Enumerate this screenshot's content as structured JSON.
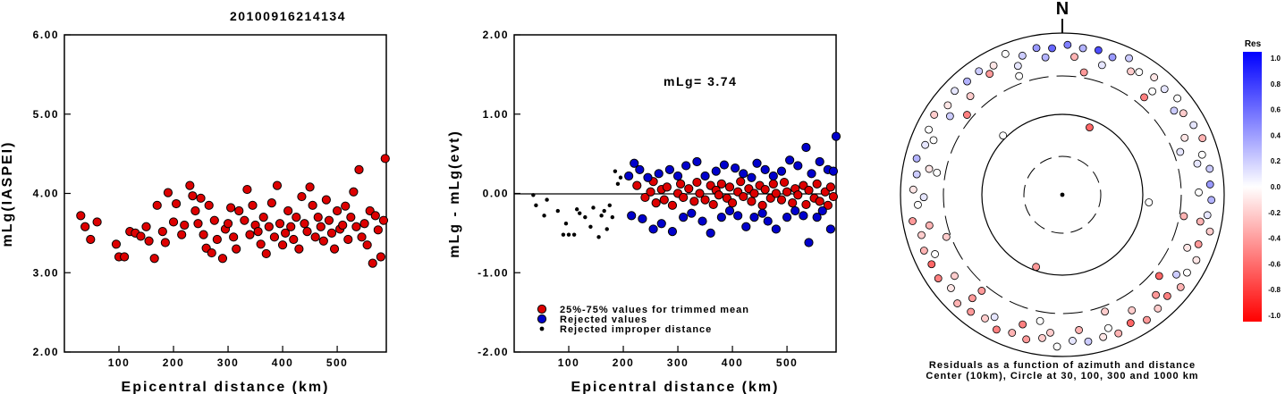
{
  "title": "20100916214134",
  "chart_data": [
    {
      "type": "scatter",
      "name": "magnitude-vs-distance",
      "xlabel": "Epicentral distance (km)",
      "ylabel": "mLg(IASPEI)",
      "xlim": [
        0,
        590
      ],
      "ylim": [
        2.0,
        6.0
      ],
      "xticks": [
        "100",
        "200",
        "300",
        "400",
        "500"
      ],
      "yticks": [
        "2.00",
        "3.00",
        "4.00",
        "5.00",
        "6.00"
      ],
      "series": [
        {
          "marker": "red-circle",
          "x": [
            30,
            38,
            48,
            60,
            95,
            100,
            110,
            120,
            130,
            140,
            150,
            155,
            165,
            170,
            180,
            185,
            190,
            200,
            205,
            215,
            220,
            230,
            235,
            240,
            245,
            250,
            255,
            260,
            265,
            270,
            275,
            280,
            290,
            295,
            300,
            305,
            310,
            315,
            320,
            330,
            335,
            340,
            345,
            350,
            355,
            360,
            365,
            370,
            375,
            380,
            385,
            390,
            395,
            400,
            405,
            410,
            415,
            420,
            425,
            430,
            435,
            440,
            445,
            450,
            455,
            460,
            465,
            470,
            475,
            480,
            485,
            490,
            495,
            500,
            505,
            510,
            515,
            520,
            525,
            530,
            535,
            540,
            545,
            550,
            555,
            560,
            565,
            570,
            575,
            580,
            585,
            588
          ],
          "y": [
            3.72,
            3.58,
            3.42,
            3.64,
            3.36,
            3.2,
            3.2,
            3.52,
            3.5,
            3.46,
            3.58,
            3.4,
            3.18,
            3.85,
            3.52,
            3.38,
            4.01,
            3.64,
            3.87,
            3.48,
            3.6,
            4.1,
            3.97,
            3.78,
            3.62,
            3.94,
            3.48,
            3.31,
            3.85,
            3.25,
            3.66,
            3.42,
            3.18,
            3.55,
            3.62,
            3.82,
            3.45,
            3.3,
            3.78,
            3.66,
            4.05,
            3.48,
            3.85,
            3.6,
            3.52,
            3.36,
            3.7,
            3.24,
            3.58,
            3.88,
            3.45,
            4.1,
            3.62,
            3.35,
            3.5,
            3.78,
            3.58,
            3.42,
            3.7,
            3.3,
            3.96,
            3.62,
            3.52,
            4.08,
            3.85,
            3.45,
            3.7,
            3.58,
            3.4,
            3.92,
            3.66,
            3.5,
            3.3,
            3.78,
            3.55,
            3.6,
            3.84,
            3.42,
            3.7,
            4.02,
            3.58,
            4.3,
            3.45,
            3.62,
            3.35,
            3.78,
            3.12,
            3.72,
            3.54,
            3.2,
            3.66,
            4.44
          ]
        }
      ]
    },
    {
      "type": "scatter",
      "name": "residual-vs-distance",
      "xlabel": "Epicentral distance (km)",
      "ylabel": "mLg - mLg(evt)",
      "xlim": [
        0,
        590
      ],
      "ylim": [
        -2.0,
        2.0
      ],
      "xticks": [
        "100",
        "200",
        "300",
        "400",
        "500"
      ],
      "yticks": [
        "-2.00",
        "-1.00",
        "0.00",
        "1.00",
        "2.00"
      ],
      "annotation": "mLg= 3.74",
      "series": [
        {
          "name": "25%-75% values for trimmed mean",
          "marker": "red-circle",
          "x": [
            225,
            240,
            250,
            255,
            260,
            270,
            275,
            280,
            290,
            300,
            305,
            310,
            320,
            330,
            335,
            340,
            350,
            360,
            365,
            370,
            375,
            380,
            390,
            395,
            400,
            410,
            415,
            420,
            430,
            435,
            440,
            450,
            455,
            460,
            470,
            475,
            480,
            490,
            495,
            500,
            510,
            515,
            520,
            530,
            535,
            540,
            550,
            555,
            560,
            570,
            575,
            580,
            585
          ],
          "y": [
            0.1,
            -0.05,
            0.02,
            0.15,
            -0.12,
            0.05,
            -0.08,
            0.08,
            -0.15,
            0.0,
            0.12,
            -0.05,
            0.06,
            -0.1,
            0.14,
            0.0,
            -0.08,
            0.1,
            -0.14,
            0.04,
            -0.02,
            0.12,
            -0.06,
            0.08,
            -0.12,
            0.02,
            0.15,
            -0.04,
            0.06,
            -0.1,
            0.0,
            0.1,
            -0.15,
            0.05,
            -0.06,
            0.12,
            0.0,
            -0.08,
            0.14,
            0.02,
            -0.12,
            0.06,
            -0.02,
            0.1,
            -0.14,
            0.04,
            -0.06,
            0.12,
            -0.1,
            0.02,
            -0.15,
            0.08,
            -0.04
          ]
        },
        {
          "name": "Rejected values",
          "marker": "blue-circle",
          "x": [
            210,
            215,
            220,
            230,
            235,
            245,
            255,
            265,
            270,
            285,
            290,
            300,
            310,
            315,
            325,
            335,
            345,
            350,
            360,
            370,
            380,
            385,
            395,
            405,
            410,
            420,
            425,
            435,
            440,
            445,
            455,
            460,
            465,
            475,
            480,
            490,
            500,
            505,
            515,
            520,
            530,
            535,
            540,
            545,
            555,
            560,
            565,
            575,
            580,
            585,
            590
          ],
          "y": [
            0.22,
            -0.28,
            0.38,
            0.3,
            -0.32,
            0.2,
            -0.45,
            0.25,
            -0.38,
            0.3,
            -0.48,
            0.22,
            -0.3,
            0.35,
            -0.25,
            0.4,
            -0.35,
            0.22,
            -0.5,
            0.28,
            -0.3,
            0.36,
            -0.22,
            0.32,
            -0.28,
            0.25,
            -0.42,
            0.2,
            -0.3,
            0.38,
            -0.25,
            0.3,
            -0.35,
            0.22,
            -0.45,
            0.28,
            -0.3,
            0.42,
            -0.22,
            0.35,
            -0.28,
            0.58,
            -0.62,
            0.25,
            -0.3,
            0.4,
            -0.22,
            0.3,
            -0.45,
            0.28,
            0.72
          ]
        },
        {
          "name": "Rejected improper distance",
          "marker": "black-dot",
          "x": [
            35,
            40,
            55,
            60,
            80,
            90,
            95,
            100,
            110,
            115,
            120,
            130,
            140,
            145,
            155,
            160,
            165,
            170,
            175,
            180,
            185,
            190,
            195
          ],
          "y": [
            -0.02,
            -0.15,
            -0.28,
            -0.08,
            -0.22,
            -0.52,
            -0.38,
            -0.52,
            -0.52,
            -0.2,
            -0.25,
            -0.3,
            -0.42,
            -0.18,
            -0.55,
            -0.28,
            -0.22,
            -0.45,
            -0.15,
            -0.3,
            0.28,
            0.12,
            0.2
          ]
        }
      ]
    },
    {
      "type": "scatter",
      "name": "residual-polar",
      "caption_line1": "Residuals as a function of azimuth and distance",
      "caption_line2": "Center (10km), Circle at 30, 100, 300 and 1000 km",
      "north_label": "N",
      "colorbar_title": "Res",
      "colorbar_ticks": [
        "1.0",
        "0.8",
        "0.6",
        "0.4",
        "0.2",
        "0.0",
        "-0.2",
        "-0.4",
        "-0.6",
        "-0.8",
        "-1.0"
      ],
      "colorbar_colors": {
        "positive": "#0000ff",
        "zero": "#ffffff",
        "negative": "#ff0000"
      },
      "rings_km": [
        30,
        100,
        300,
        1000
      ],
      "stations": {
        "az": [
          2,
          8,
          14,
          20,
          26,
          32,
          38,
          44,
          50,
          56,
          62,
          68,
          74,
          80,
          86,
          92,
          98,
          104,
          110,
          116,
          122,
          128,
          134,
          140,
          146,
          152,
          158,
          164,
          170,
          176,
          182,
          188,
          194,
          200,
          206,
          212,
          218,
          224,
          230,
          236,
          242,
          248,
          254,
          260,
          266,
          272,
          278,
          284,
          290,
          296,
          302,
          308,
          314,
          320,
          326,
          332,
          338,
          344,
          350,
          356,
          5,
          17,
          29,
          41,
          53,
          65,
          77,
          89,
          101,
          113,
          125,
          137,
          149,
          161,
          173,
          185,
          197,
          209,
          221,
          233,
          245,
          257,
          269,
          281,
          293,
          305,
          317,
          329,
          341,
          353,
          10,
          40,
          70,
          100,
          130,
          160,
          190,
          220,
          250,
          280,
          310,
          340,
          22,
          95,
          200,
          315
        ],
        "dist_km": [
          720,
          680,
          700,
          650,
          760,
          620,
          700,
          660,
          720,
          640,
          690,
          740,
          630,
          710,
          680,
          700,
          650,
          760,
          620,
          700,
          660,
          720,
          640,
          690,
          740,
          630,
          710,
          680,
          700,
          650,
          760,
          620,
          700,
          660,
          720,
          640,
          690,
          740,
          630,
          710,
          680,
          700,
          650,
          760,
          620,
          700,
          660,
          720,
          640,
          690,
          740,
          630,
          710,
          680,
          700,
          650,
          760,
          620,
          700,
          660,
          520,
          480,
          560,
          500,
          540,
          470,
          520,
          490,
          550,
          480,
          530,
          500,
          470,
          560,
          490,
          520,
          480,
          540,
          500,
          470,
          550,
          490,
          520,
          480,
          540,
          500,
          470,
          560,
          490,
          520,
          350,
          380,
          360,
          340,
          370,
          350,
          390,
          360,
          340,
          380,
          350,
          370,
          80,
          120,
          90,
          110
        ],
        "res": [
          0.5,
          0.3,
          0.7,
          0.4,
          0.2,
          0.0,
          -0.1,
          0.1,
          0.0,
          -0.2,
          0.1,
          -0.3,
          0.0,
          0.2,
          0.4,
          0.3,
          0.1,
          -0.2,
          -0.4,
          -0.1,
          0.0,
          -0.3,
          -0.5,
          -0.2,
          -0.4,
          -0.6,
          -0.3,
          -0.1,
          0.2,
          0.1,
          0.0,
          -0.2,
          -0.4,
          -0.3,
          -0.5,
          -0.2,
          -0.4,
          -0.3,
          -0.1,
          -0.5,
          -0.6,
          -0.3,
          -0.2,
          -0.4,
          0.0,
          -0.1,
          0.2,
          0.3,
          0.1,
          0.0,
          -0.2,
          -0.1,
          0.1,
          0.3,
          0.2,
          -0.1,
          0.0,
          0.2,
          0.4,
          0.6,
          -0.3,
          0.1,
          -0.2,
          0.0,
          0.2,
          -0.1,
          0.1,
          0.0,
          -0.3,
          -0.1,
          0.2,
          -0.4,
          -0.2,
          0.0,
          -0.3,
          -0.2,
          -0.5,
          0.1,
          -0.4,
          -0.2,
          0.0,
          -0.3,
          0.1,
          -0.1,
          0.0,
          0.2,
          -0.2,
          -0.4,
          0.1,
          0.3,
          -0.4,
          -0.5,
          0.1,
          -0.3,
          -0.6,
          -0.2,
          0.0,
          -0.4,
          -0.2,
          0.0,
          -0.5,
          0.0,
          -0.6,
          0.0,
          -0.4,
          0.0
        ]
      }
    }
  ]
}
